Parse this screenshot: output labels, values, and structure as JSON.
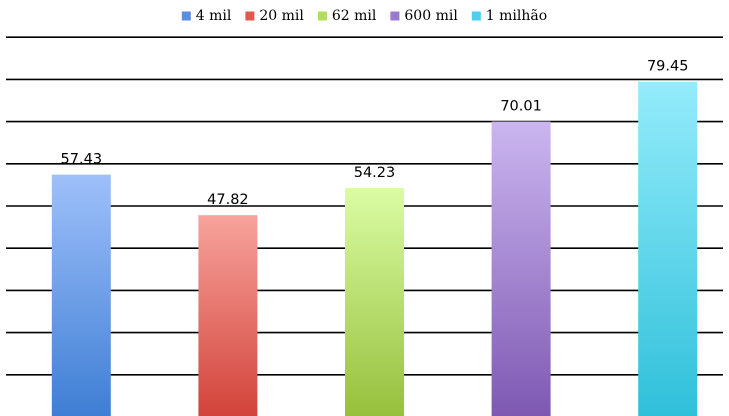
{
  "chart_data": {
    "type": "bar",
    "title": "",
    "xlabel": "",
    "ylabel": "",
    "categories": [
      "4 mil",
      "20 mil",
      "62 mil",
      "600 mil",
      "1 milhão"
    ],
    "values": [
      57.43,
      47.82,
      54.23,
      70.01,
      79.45
    ],
    "data_labels": [
      "57.43",
      "47.82",
      "54.23",
      "70.01",
      "79.45"
    ],
    "ylim": [
      0,
      90
    ],
    "grid": true,
    "legend": {
      "position": "top",
      "entries": [
        "4 mil",
        "20 mil",
        "62 mil",
        "600 mil",
        "1 milhão"
      ]
    },
    "series_colors": [
      {
        "top": "#9ec0fa",
        "bottom": "#3e7ed4"
      },
      {
        "top": "#f7a39c",
        "bottom": "#d2433a"
      },
      {
        "top": "#dbfca4",
        "bottom": "#96c03c"
      },
      {
        "top": "#cbb6f0",
        "bottom": "#7e58b2"
      },
      {
        "top": "#94ecfb",
        "bottom": "#2fc0da"
      }
    ],
    "legend_colors": [
      "#5b8ee3",
      "#e05a52",
      "#b2dd5e",
      "#9a78cc",
      "#4fd0e8"
    ]
  }
}
